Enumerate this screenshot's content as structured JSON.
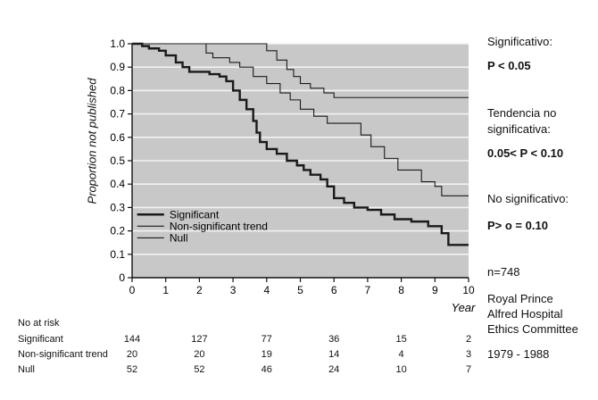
{
  "chart_data": {
    "type": "line",
    "ylabel": "Proportion not published",
    "xlabel": "Year",
    "xlim": [
      0,
      10
    ],
    "ylim": [
      0,
      1.0
    ],
    "xticks": [
      0,
      1,
      2,
      3,
      4,
      5,
      6,
      7,
      8,
      9,
      10
    ],
    "yticks": [
      "0",
      "0.1",
      "0.2",
      "0.3",
      "0.4",
      "0.5",
      "0.6",
      "0.7",
      "0.8",
      "0.9",
      "1.0"
    ],
    "grid": true,
    "legend_position": "bottom-left",
    "series": [
      {
        "name": "Significant",
        "style": "thick",
        "points": [
          [
            0,
            1.0
          ],
          [
            0.3,
            0.99
          ],
          [
            0.5,
            0.98
          ],
          [
            0.8,
            0.97
          ],
          [
            1.0,
            0.95
          ],
          [
            1.3,
            0.92
          ],
          [
            1.5,
            0.9
          ],
          [
            1.7,
            0.88
          ],
          [
            2.0,
            0.88
          ],
          [
            2.3,
            0.87
          ],
          [
            2.6,
            0.86
          ],
          [
            2.8,
            0.84
          ],
          [
            3.0,
            0.8
          ],
          [
            3.2,
            0.76
          ],
          [
            3.4,
            0.72
          ],
          [
            3.6,
            0.67
          ],
          [
            3.7,
            0.62
          ],
          [
            3.8,
            0.58
          ],
          [
            4.0,
            0.55
          ],
          [
            4.3,
            0.53
          ],
          [
            4.6,
            0.5
          ],
          [
            4.9,
            0.48
          ],
          [
            5.1,
            0.46
          ],
          [
            5.3,
            0.44
          ],
          [
            5.6,
            0.42
          ],
          [
            5.8,
            0.39
          ],
          [
            6.0,
            0.34
          ],
          [
            6.3,
            0.32
          ],
          [
            6.6,
            0.3
          ],
          [
            7.0,
            0.29
          ],
          [
            7.4,
            0.27
          ],
          [
            7.8,
            0.25
          ],
          [
            8.3,
            0.24
          ],
          [
            8.8,
            0.22
          ],
          [
            9.2,
            0.19
          ],
          [
            9.4,
            0.14
          ],
          [
            10.0,
            0.14
          ]
        ]
      },
      {
        "name": "Non-significant trend",
        "style": "thin",
        "points": [
          [
            0,
            1.0
          ],
          [
            2.0,
            1.0
          ],
          [
            2.2,
            0.96
          ],
          [
            2.4,
            0.94
          ],
          [
            2.9,
            0.92
          ],
          [
            3.2,
            0.9
          ],
          [
            3.6,
            0.86
          ],
          [
            4.0,
            0.83
          ],
          [
            4.4,
            0.79
          ],
          [
            4.7,
            0.76
          ],
          [
            5.0,
            0.72
          ],
          [
            5.4,
            0.69
          ],
          [
            5.8,
            0.66
          ],
          [
            6.8,
            0.61
          ],
          [
            7.1,
            0.56
          ],
          [
            7.5,
            0.51
          ],
          [
            7.9,
            0.46
          ],
          [
            8.6,
            0.41
          ],
          [
            9.0,
            0.39
          ],
          [
            9.2,
            0.35
          ],
          [
            10.0,
            0.35
          ]
        ]
      },
      {
        "name": "Null",
        "style": "thin",
        "points": [
          [
            0,
            1.0
          ],
          [
            3.7,
            1.0
          ],
          [
            4.0,
            0.97
          ],
          [
            4.3,
            0.93
          ],
          [
            4.6,
            0.89
          ],
          [
            4.8,
            0.86
          ],
          [
            5.0,
            0.83
          ],
          [
            5.3,
            0.81
          ],
          [
            5.7,
            0.79
          ],
          [
            6.0,
            0.77
          ],
          [
            10.0,
            0.77
          ]
        ]
      }
    ]
  },
  "risk_table": {
    "title": "No at risk",
    "years": [
      0,
      2,
      4,
      6,
      8,
      10
    ],
    "rows": [
      {
        "label": "Significant",
        "values": [
          "144",
          "127",
          "77",
          "36",
          "15",
          "2"
        ]
      },
      {
        "label": "Non-significant trend",
        "values": [
          "20",
          "20",
          "19",
          "14",
          "4",
          "3"
        ]
      },
      {
        "label": "Null",
        "values": [
          "52",
          "52",
          "46",
          "24",
          "10",
          "7"
        ]
      }
    ]
  },
  "side_notes": {
    "sig_label": "Significativo:",
    "sig_value": "P < 0.05",
    "trend_label_1": "Tendencia no",
    "trend_label_2": "significativa:",
    "trend_value": "0.05< P < 0.10",
    "nonsig_label": "No significativo:",
    "nonsig_value": "P> o = 0.10",
    "n": "n=748",
    "committee_1": "Royal Prince",
    "committee_2": "Alfred Hospital",
    "committee_3": "Ethics Committee",
    "years": "1979 - 1988"
  },
  "colors": {
    "plot_background": "#c8c8c8",
    "grid": "#f2f2f2",
    "line": "#1a1a1a"
  }
}
